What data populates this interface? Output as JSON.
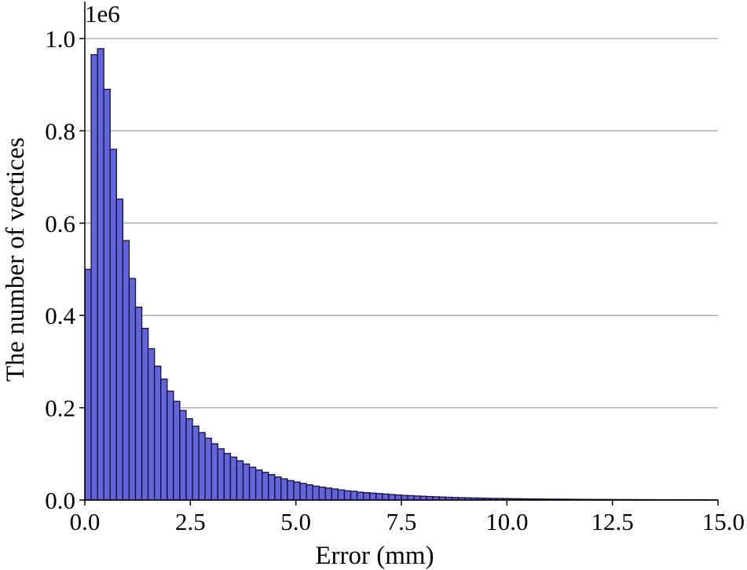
{
  "chart_data": {
    "type": "bar",
    "title": "",
    "xlabel": "Error (mm)",
    "ylabel": "The number of vectices",
    "y_offset_label": "1e6",
    "xlim": [
      0,
      15
    ],
    "ylim": [
      0,
      1.0
    ],
    "x_ticks": [
      "0.0",
      "2.5",
      "5.0",
      "7.5",
      "10.0",
      "12.5",
      "15.0"
    ],
    "y_ticks": [
      "0.0",
      "0.2",
      "0.4",
      "0.6",
      "0.8",
      "1.0"
    ],
    "grid": "horizontal",
    "bar_color": "#6464dc",
    "bin_width": 0.15,
    "bin_start": 0,
    "values": [
      0.5,
      0.965,
      0.978,
      0.89,
      0.76,
      0.652,
      0.562,
      0.48,
      0.418,
      0.372,
      0.328,
      0.29,
      0.262,
      0.236,
      0.214,
      0.194,
      0.176,
      0.16,
      0.146,
      0.134,
      0.122,
      0.111,
      0.101,
      0.093,
      0.085,
      0.078,
      0.071,
      0.065,
      0.06,
      0.055,
      0.05,
      0.046,
      0.042,
      0.039,
      0.036,
      0.033,
      0.03,
      0.028,
      0.026,
      0.024,
      0.022,
      0.02,
      0.019,
      0.017,
      0.016,
      0.015,
      0.014,
      0.013,
      0.012,
      0.011,
      0.01,
      0.0095,
      0.0088,
      0.0082,
      0.0076,
      0.007,
      0.0065,
      0.006,
      0.0056,
      0.0052,
      0.0048,
      0.0045,
      0.0042,
      0.0039,
      0.0036,
      0.0034,
      0.0032,
      0.003,
      0.0028,
      0.0026,
      0.0024,
      0.0023,
      0.0021,
      0.002,
      0.0019,
      0.0018,
      0.0017,
      0.0016,
      0.0015,
      0.0014,
      0.0013,
      0.0012,
      0.0012,
      0.0011,
      0.001,
      0.001,
      0.0009,
      0.0009,
      0.0008,
      0.0008,
      0.0007,
      0.0007,
      0.0006,
      0.0006,
      0.0006,
      0.0005,
      0.0005,
      0.0005,
      0.0004,
      0.0004
    ]
  }
}
